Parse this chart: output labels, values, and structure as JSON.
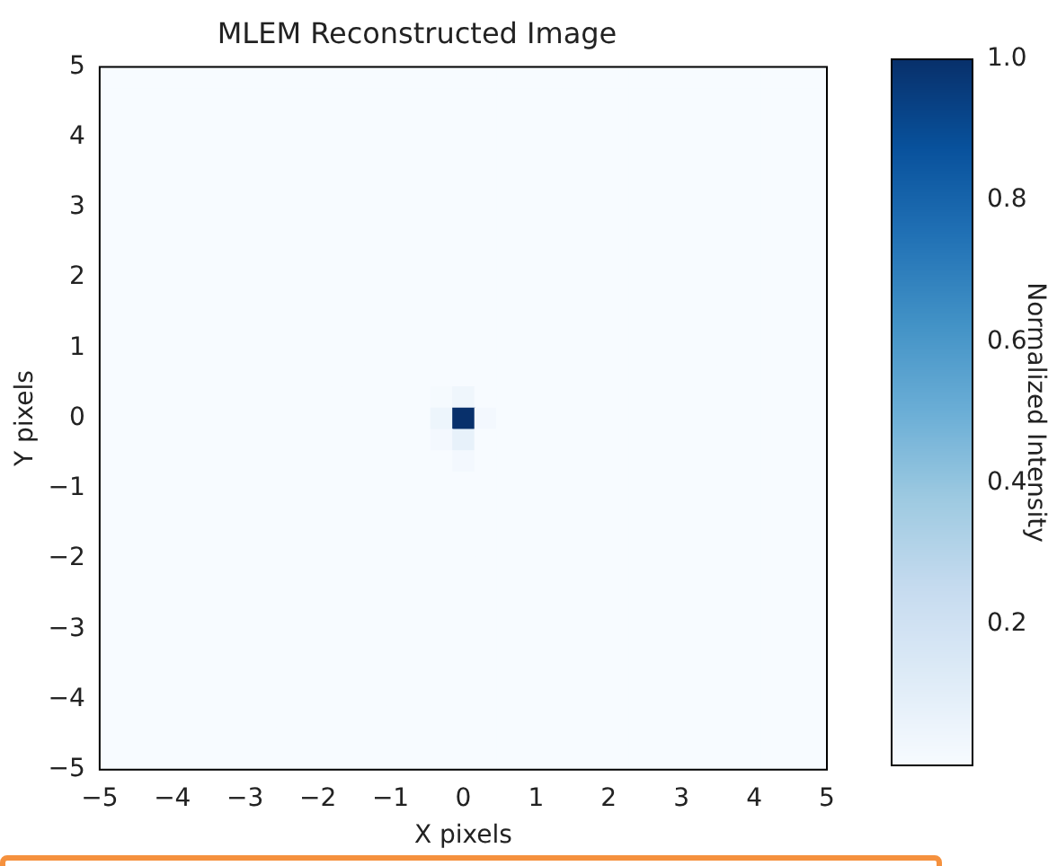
{
  "chart_data": {
    "type": "heatmap",
    "title": "MLEM Reconstructed Image",
    "xlabel": "X pixels",
    "ylabel": "Y pixels",
    "clabel": "Normalized Intensity",
    "xlim": [
      -5,
      5
    ],
    "ylim": [
      -5,
      5
    ],
    "xticks": [
      -5,
      -4,
      -3,
      -2,
      -1,
      0,
      1,
      2,
      3,
      4,
      5
    ],
    "yticks": [
      -5,
      -4,
      -3,
      -2,
      -1,
      0,
      1,
      2,
      3,
      4,
      5
    ],
    "clim": [
      0,
      1
    ],
    "cticks": [
      0.2,
      0.4,
      0.6,
      0.8,
      {
        "value": 1,
        "label": "1.0"
      }
    ],
    "cells": [
      [
        0,
        0,
        0,
        0,
        0,
        0,
        0,
        0,
        0,
        0,
        0,
        0,
        0,
        0,
        0,
        0,
        0,
        0,
        0,
        0,
        0,
        0,
        0,
        0,
        0,
        0,
        0,
        0,
        0,
        0,
        0,
        0,
        0
      ],
      [
        0,
        0,
        0,
        0,
        0,
        0,
        0,
        0,
        0,
        0,
        0,
        0,
        0,
        0,
        0,
        0,
        0,
        0,
        0,
        0,
        0,
        0,
        0,
        0,
        0,
        0,
        0,
        0,
        0,
        0,
        0,
        0,
        0
      ],
      [
        0,
        0,
        0,
        0,
        0,
        0,
        0,
        0,
        0,
        0,
        0,
        0,
        0,
        0,
        0,
        0,
        0,
        0,
        0,
        0,
        0,
        0,
        0,
        0,
        0,
        0,
        0,
        0,
        0,
        0,
        0,
        0,
        0
      ],
      [
        0,
        0,
        0,
        0,
        0,
        0,
        0,
        0,
        0,
        0,
        0,
        0,
        0,
        0,
        0,
        0,
        0,
        0,
        0,
        0,
        0,
        0,
        0,
        0,
        0,
        0,
        0,
        0,
        0,
        0,
        0,
        0,
        0
      ],
      [
        0,
        0,
        0,
        0,
        0,
        0,
        0,
        0,
        0,
        0,
        0,
        0,
        0,
        0,
        0,
        0,
        0,
        0,
        0,
        0,
        0,
        0,
        0,
        0,
        0,
        0,
        0,
        0,
        0,
        0,
        0,
        0,
        0
      ],
      [
        0,
        0,
        0,
        0,
        0,
        0,
        0,
        0,
        0,
        0,
        0,
        0,
        0,
        0,
        0,
        0,
        0,
        0,
        0,
        0,
        0,
        0,
        0,
        0,
        0,
        0,
        0,
        0,
        0,
        0,
        0,
        0,
        0
      ],
      [
        0,
        0,
        0,
        0,
        0,
        0,
        0,
        0,
        0,
        0,
        0,
        0,
        0,
        0,
        0,
        0,
        0,
        0,
        0,
        0,
        0,
        0,
        0,
        0,
        0,
        0,
        0,
        0,
        0,
        0,
        0,
        0,
        0
      ],
      [
        0,
        0,
        0,
        0,
        0,
        0,
        0,
        0,
        0,
        0,
        0,
        0,
        0,
        0,
        0,
        0,
        0,
        0,
        0,
        0,
        0,
        0,
        0,
        0,
        0,
        0,
        0,
        0,
        0,
        0,
        0,
        0,
        0
      ],
      [
        0,
        0,
        0,
        0,
        0,
        0,
        0,
        0,
        0,
        0,
        0,
        0,
        0,
        0,
        0,
        0,
        0,
        0,
        0,
        0,
        0,
        0,
        0,
        0,
        0,
        0,
        0,
        0,
        0,
        0,
        0,
        0,
        0
      ],
      [
        0,
        0,
        0,
        0,
        0,
        0,
        0,
        0,
        0,
        0,
        0,
        0,
        0,
        0,
        0,
        0,
        0,
        0,
        0,
        0,
        0,
        0,
        0,
        0,
        0,
        0,
        0,
        0,
        0,
        0,
        0,
        0,
        0
      ],
      [
        0,
        0,
        0,
        0,
        0,
        0,
        0,
        0,
        0,
        0,
        0,
        0,
        0,
        0,
        0,
        0,
        0,
        0,
        0,
        0,
        0,
        0,
        0,
        0,
        0,
        0,
        0,
        0,
        0,
        0,
        0,
        0,
        0
      ],
      [
        0,
        0,
        0,
        0,
        0,
        0,
        0,
        0,
        0,
        0,
        0,
        0,
        0,
        0,
        0,
        0,
        0,
        0,
        0,
        0,
        0,
        0,
        0,
        0,
        0,
        0,
        0,
        0,
        0,
        0,
        0,
        0,
        0
      ],
      [
        0,
        0,
        0,
        0,
        0,
        0,
        0,
        0,
        0,
        0,
        0,
        0,
        0,
        0,
        0,
        0,
        0,
        0,
        0,
        0,
        0,
        0,
        0,
        0,
        0,
        0,
        0,
        0,
        0,
        0,
        0,
        0,
        0
      ],
      [
        0,
        0,
        0,
        0,
        0,
        0,
        0,
        0,
        0,
        0,
        0,
        0,
        0,
        0,
        0,
        0,
        0,
        0,
        0,
        0,
        0,
        0,
        0,
        0,
        0,
        0,
        0,
        0,
        0,
        0,
        0,
        0,
        0
      ],
      [
        0,
        0,
        0,
        0,
        0,
        0,
        0,
        0,
        0,
        0,
        0,
        0,
        0,
        0,
        0,
        0,
        0,
        0,
        0,
        0,
        0,
        0,
        0,
        0,
        0,
        0,
        0,
        0,
        0,
        0,
        0,
        0,
        0
      ],
      [
        0,
        0,
        0,
        0,
        0,
        0,
        0,
        0,
        0,
        0,
        0,
        0,
        0,
        0,
        0,
        0.01,
        0.04,
        0,
        0,
        0,
        0,
        0,
        0,
        0,
        0,
        0,
        0,
        0,
        0,
        0,
        0,
        0,
        0
      ],
      [
        0,
        0,
        0,
        0,
        0,
        0,
        0,
        0,
        0,
        0,
        0,
        0,
        0,
        0,
        0,
        0.05,
        1,
        0.02,
        0,
        0,
        0,
        0,
        0,
        0,
        0,
        0,
        0,
        0,
        0,
        0,
        0,
        0,
        0
      ],
      [
        0,
        0,
        0,
        0,
        0,
        0,
        0,
        0,
        0,
        0,
        0,
        0,
        0,
        0,
        0,
        0.02,
        0.08,
        0,
        0,
        0,
        0,
        0,
        0,
        0,
        0,
        0,
        0,
        0,
        0,
        0,
        0,
        0,
        0
      ],
      [
        0,
        0,
        0,
        0,
        0,
        0,
        0,
        0,
        0,
        0,
        0,
        0,
        0,
        0,
        0,
        0,
        0.02,
        0,
        0,
        0,
        0,
        0,
        0,
        0,
        0,
        0,
        0,
        0,
        0,
        0,
        0,
        0,
        0
      ],
      [
        0,
        0,
        0,
        0,
        0,
        0,
        0,
        0,
        0,
        0,
        0,
        0,
        0,
        0,
        0,
        0,
        0,
        0,
        0,
        0,
        0,
        0,
        0,
        0,
        0,
        0,
        0,
        0,
        0,
        0,
        0,
        0,
        0
      ],
      [
        0,
        0,
        0,
        0,
        0,
        0,
        0,
        0,
        0,
        0,
        0,
        0,
        0,
        0,
        0,
        0,
        0,
        0,
        0,
        0,
        0,
        0,
        0,
        0,
        0,
        0,
        0,
        0,
        0,
        0,
        0,
        0,
        0
      ],
      [
        0,
        0,
        0,
        0,
        0,
        0,
        0,
        0,
        0,
        0,
        0,
        0,
        0,
        0,
        0,
        0,
        0,
        0,
        0,
        0,
        0,
        0,
        0,
        0,
        0,
        0,
        0,
        0,
        0,
        0,
        0,
        0,
        0
      ],
      [
        0,
        0,
        0,
        0,
        0,
        0,
        0,
        0,
        0,
        0,
        0,
        0,
        0,
        0,
        0,
        0,
        0,
        0,
        0,
        0,
        0,
        0,
        0,
        0,
        0,
        0,
        0,
        0,
        0,
        0,
        0,
        0,
        0
      ],
      [
        0,
        0,
        0,
        0,
        0,
        0,
        0,
        0,
        0,
        0,
        0,
        0,
        0,
        0,
        0,
        0,
        0,
        0,
        0,
        0,
        0,
        0,
        0,
        0,
        0,
        0,
        0,
        0,
        0,
        0,
        0,
        0,
        0
      ],
      [
        0,
        0,
        0,
        0,
        0,
        0,
        0,
        0,
        0,
        0,
        0,
        0,
        0,
        0,
        0,
        0,
        0,
        0,
        0,
        0,
        0,
        0,
        0,
        0,
        0,
        0,
        0,
        0,
        0,
        0,
        0,
        0,
        0
      ],
      [
        0,
        0,
        0,
        0,
        0,
        0,
        0,
        0,
        0,
        0,
        0,
        0,
        0,
        0,
        0,
        0,
        0,
        0,
        0,
        0,
        0,
        0,
        0,
        0,
        0,
        0,
        0,
        0,
        0,
        0,
        0,
        0,
        0
      ],
      [
        0,
        0,
        0,
        0,
        0,
        0,
        0,
        0,
        0,
        0,
        0,
        0,
        0,
        0,
        0,
        0,
        0,
        0,
        0,
        0,
        0,
        0,
        0,
        0,
        0,
        0,
        0,
        0,
        0,
        0,
        0,
        0,
        0
      ],
      [
        0,
        0,
        0,
        0,
        0,
        0,
        0,
        0,
        0,
        0,
        0,
        0,
        0,
        0,
        0,
        0,
        0,
        0,
        0,
        0,
        0,
        0,
        0,
        0,
        0,
        0,
        0,
        0,
        0,
        0,
        0,
        0,
        0
      ],
      [
        0,
        0,
        0,
        0,
        0,
        0,
        0,
        0,
        0,
        0,
        0,
        0,
        0,
        0,
        0,
        0,
        0,
        0,
        0,
        0,
        0,
        0,
        0,
        0,
        0,
        0,
        0,
        0,
        0,
        0,
        0,
        0,
        0
      ],
      [
        0,
        0,
        0,
        0,
        0,
        0,
        0,
        0,
        0,
        0,
        0,
        0,
        0,
        0,
        0,
        0,
        0,
        0,
        0,
        0,
        0,
        0,
        0,
        0,
        0,
        0,
        0,
        0,
        0,
        0,
        0,
        0,
        0
      ],
      [
        0,
        0,
        0,
        0,
        0,
        0,
        0,
        0,
        0,
        0,
        0,
        0,
        0,
        0,
        0,
        0,
        0,
        0,
        0,
        0,
        0,
        0,
        0,
        0,
        0,
        0,
        0,
        0,
        0,
        0,
        0,
        0,
        0
      ],
      [
        0,
        0,
        0,
        0,
        0,
        0,
        0,
        0,
        0,
        0,
        0,
        0,
        0,
        0,
        0,
        0,
        0,
        0,
        0,
        0,
        0,
        0,
        0,
        0,
        0,
        0,
        0,
        0,
        0,
        0,
        0,
        0,
        0
      ],
      [
        0,
        0,
        0,
        0,
        0,
        0,
        0,
        0,
        0,
        0,
        0,
        0,
        0,
        0,
        0,
        0,
        0,
        0,
        0,
        0,
        0,
        0,
        0,
        0,
        0,
        0,
        0,
        0,
        0,
        0,
        0,
        0,
        0
      ]
    ]
  }
}
